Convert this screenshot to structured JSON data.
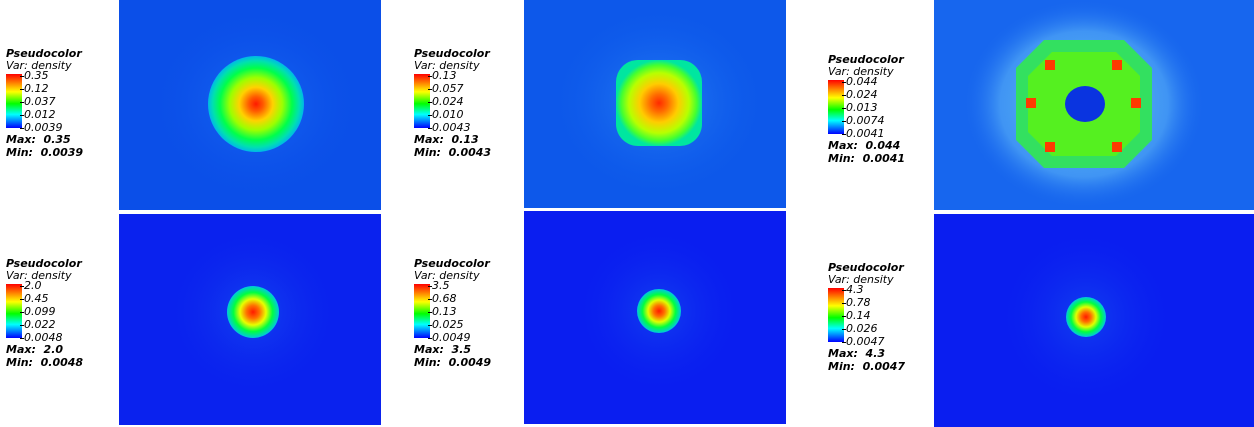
{
  "panels": [
    {
      "legend": {
        "title": "Pseudocolor",
        "var": "Var: density",
        "ticks": [
          "0.35",
          "0.12",
          "0.037",
          "0.012",
          "0.0039"
        ],
        "max_label": "Max:",
        "max": "0.35",
        "min_label": "Min:",
        "min": "0.0039"
      }
    },
    {
      "legend": {
        "title": "Pseudocolor",
        "var": "Var: density",
        "ticks": [
          "0.13",
          "0.057",
          "0.024",
          "0.010",
          "0.0043"
        ],
        "max_label": "Max:",
        "max": "0.13",
        "min_label": "Min:",
        "min": "0.0043"
      }
    },
    {
      "legend": {
        "title": "Pseudocolor",
        "var": "Var: density",
        "ticks": [
          "0.044",
          "0.024",
          "0.013",
          "0.0074",
          "0.0041"
        ],
        "max_label": "Max:",
        "max": "0.044",
        "min_label": "Min:",
        "min": "0.0041"
      }
    },
    {
      "legend": {
        "title": "Pseudocolor",
        "var": "Var: density",
        "ticks": [
          "2.0",
          "0.45",
          "0.099",
          "0.022",
          "0.0048"
        ],
        "max_label": "Max:",
        "max": "2.0",
        "min_label": "Min:",
        "min": "0.0048"
      }
    },
    {
      "legend": {
        "title": "Pseudocolor",
        "var": "Var: density",
        "ticks": [
          "3.5",
          "0.68",
          "0.13",
          "0.025",
          "0.0049"
        ],
        "max_label": "Max:",
        "max": "3.5",
        "min_label": "Min:",
        "min": "0.0049"
      }
    },
    {
      "legend": {
        "title": "Pseudocolor",
        "var": "Var: density",
        "ticks": [
          "4.3",
          "0.78",
          "0.14",
          "0.026",
          "0.0047"
        ],
        "max_label": "Max:",
        "max": "4.3",
        "min_label": "Min:",
        "min": "0.0047"
      }
    }
  ]
}
